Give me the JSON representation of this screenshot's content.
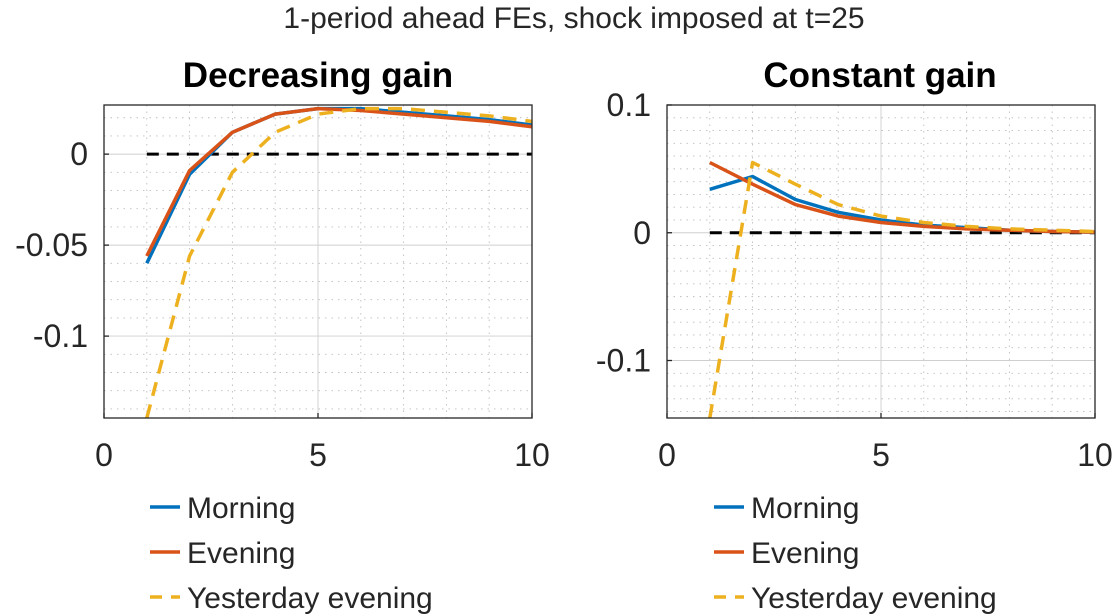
{
  "figure": {
    "suptitle": "1-period ahead FEs, shock imposed at t=25"
  },
  "colors": {
    "morning": "#0072BD",
    "evening": "#D95319",
    "yesterday_evening": "#EDB120",
    "zero_line": "#000000"
  },
  "chart_data": [
    {
      "type": "line",
      "title": "Decreasing gain",
      "xlabel": "",
      "ylabel": "",
      "xlim": [
        0,
        10
      ],
      "ylim": [
        -0.145,
        0.027
      ],
      "xticks": [
        0,
        5,
        10
      ],
      "xtick_labels": [
        "0",
        "5",
        "10"
      ],
      "yticks": [
        -0.1,
        -0.05,
        0
      ],
      "ytick_labels": [
        "-0.1",
        "-0.05",
        "0"
      ],
      "grid": true,
      "minor_grid": true,
      "zero_line": true,
      "legend_position": "below",
      "x": [
        1,
        2,
        3,
        4,
        5,
        6,
        7,
        8,
        9,
        10
      ],
      "series": [
        {
          "name": "Morning",
          "style": "solid",
          "color_key": "morning",
          "values": [
            -0.06,
            -0.011,
            0.012,
            0.022,
            0.025,
            0.025,
            0.023,
            0.021,
            0.019,
            0.016
          ]
        },
        {
          "name": "Evening",
          "style": "solid",
          "color_key": "evening",
          "values": [
            -0.056,
            -0.009,
            0.012,
            0.022,
            0.025,
            0.024,
            0.022,
            0.02,
            0.018,
            0.015
          ]
        },
        {
          "name": "Yesterday evening",
          "style": "dashed",
          "color_key": "yesterday_evening",
          "values": [
            -0.145,
            -0.056,
            -0.01,
            0.012,
            0.022,
            0.025,
            0.025,
            0.023,
            0.021,
            0.018
          ]
        }
      ]
    },
    {
      "type": "line",
      "title": "Constant gain",
      "xlabel": "",
      "ylabel": "",
      "xlim": [
        0,
        10
      ],
      "ylim": [
        -0.145,
        0.1
      ],
      "xticks": [
        0,
        5,
        10
      ],
      "xtick_labels": [
        "0",
        "5",
        "10"
      ],
      "yticks": [
        -0.1,
        0,
        0.1
      ],
      "ytick_labels": [
        "-0.1",
        "0",
        "0.1"
      ],
      "grid": true,
      "minor_grid": true,
      "zero_line": true,
      "legend_position": "below",
      "x": [
        1,
        2,
        3,
        4,
        5,
        6,
        7,
        8,
        9,
        10
      ],
      "series": [
        {
          "name": "Morning",
          "style": "solid",
          "color_key": "morning",
          "values": [
            0.034,
            0.044,
            0.026,
            0.016,
            0.01,
            0.006,
            0.004,
            0.002,
            0.001,
            0.0005
          ]
        },
        {
          "name": "Evening",
          "style": "solid",
          "color_key": "evening",
          "values": [
            0.055,
            0.038,
            0.022,
            0.013,
            0.008,
            0.005,
            0.003,
            0.002,
            0.001,
            0.0005
          ]
        },
        {
          "name": "Yesterday evening",
          "style": "dashed",
          "color_key": "yesterday_evening",
          "values": [
            -0.145,
            0.055,
            0.038,
            0.022,
            0.013,
            0.008,
            0.005,
            0.003,
            0.002,
            0.001
          ]
        }
      ]
    }
  ]
}
